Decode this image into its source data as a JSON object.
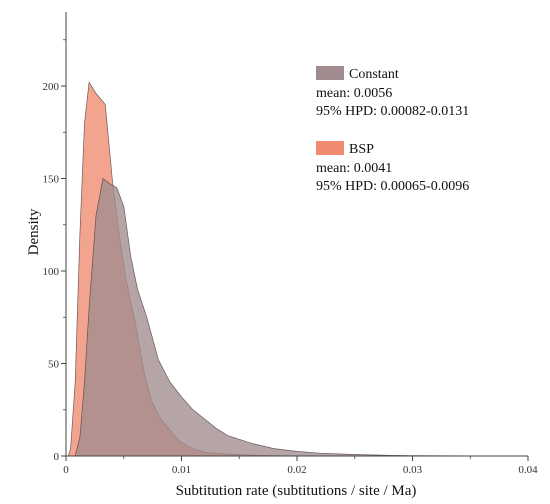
{
  "chart_data": {
    "type": "area",
    "xlabel": "Subtitution rate (subtitutions / site / Ma)",
    "ylabel": "Density",
    "xlim": [
      0,
      0.04
    ],
    "ylim": [
      0,
      240
    ],
    "xticks": [
      0,
      0.01,
      0.02,
      0.03,
      0.04
    ],
    "xtick_labels": [
      "0",
      "0.01",
      "0.02",
      "0.03",
      "0.04"
    ],
    "yticks": [
      0,
      50,
      100,
      150,
      200
    ],
    "ytick_labels": [
      "0",
      "50",
      "100",
      "150",
      "200"
    ],
    "grid": false,
    "legend_position": "top-right",
    "series": [
      {
        "name": "BSP",
        "color": "#f08a70",
        "fill_opacity": 0.78,
        "stats": [
          "mean: 0.0041",
          "95% HPD: 0.00065-0.0096"
        ],
        "x": [
          0.0002,
          0.0004,
          0.0008,
          0.0012,
          0.0016,
          0.002,
          0.0026,
          0.0034,
          0.004,
          0.0046,
          0.0052,
          0.006,
          0.0068,
          0.0074,
          0.0082,
          0.009,
          0.0098,
          0.011,
          0.012,
          0.014,
          0.016,
          0.018,
          0.02,
          0.022
        ],
        "values": [
          0,
          4,
          40,
          120,
          180,
          202,
          196,
          190,
          150,
          120,
          95,
          72,
          44,
          30,
          20,
          14,
          8,
          4,
          2,
          1,
          0.5,
          0.2,
          0.1,
          0
        ]
      },
      {
        "name": "Constant",
        "color": "#a08c8e",
        "fill_opacity": 0.78,
        "stats": [
          "mean: 0.0056",
          "95% HPD: 0.00082-0.0131"
        ],
        "x": [
          0.0008,
          0.0012,
          0.0016,
          0.002,
          0.0026,
          0.0032,
          0.0038,
          0.0044,
          0.005,
          0.0056,
          0.0062,
          0.007,
          0.008,
          0.009,
          0.01,
          0.011,
          0.012,
          0.013,
          0.014,
          0.016,
          0.018,
          0.02,
          0.022,
          0.025,
          0.028,
          0.03,
          0.035,
          0.04
        ],
        "values": [
          0,
          10,
          40,
          80,
          130,
          150,
          147,
          145,
          135,
          108,
          90,
          75,
          52,
          40,
          32,
          25,
          20,
          15,
          11,
          7,
          4,
          2.5,
          1.5,
          0.8,
          0.4,
          0.2,
          0.1,
          0
        ]
      }
    ]
  }
}
